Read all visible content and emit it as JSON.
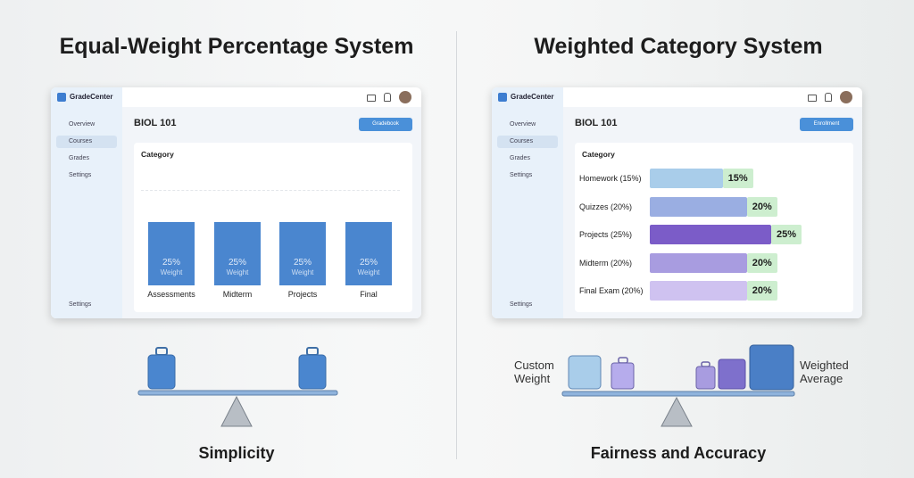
{
  "panels": [
    {
      "title": "Equal-Weight Percentage System",
      "app": {
        "brand": "GradeCenter",
        "nav": [
          "Overview",
          "Courses",
          "Grades",
          "Settings"
        ],
        "nav_bottom": "Settings",
        "course": "BIOL 101",
        "button": "Gradebook"
      },
      "chart": {
        "type": "bar",
        "heading": "Category",
        "categories": [
          "Assessments",
          "Midterm",
          "Projects",
          "Final"
        ],
        "values": [
          25,
          25,
          25,
          25
        ],
        "value_labels": [
          "25%",
          "25%",
          "25%",
          "25%"
        ],
        "value_caption": "Weight",
        "color": "#4a86cf"
      },
      "caption": "Simplicity"
    },
    {
      "title": "Weighted Category System",
      "app": {
        "brand": "GradeCenter",
        "nav": [
          "Overview",
          "Courses",
          "Grades",
          "Settings"
        ],
        "nav_bottom": "Settings",
        "course": "BIOL 101",
        "button": "Enrollment"
      },
      "chart": {
        "type": "hbar",
        "heading": "Category",
        "categories": [
          "Homework (15%)",
          "Quizzes (20%)",
          "Projects (25%)",
          "Midterm (20%)",
          "Final Exam (20%)"
        ],
        "values": [
          15,
          20,
          25,
          20,
          20
        ],
        "value_labels": [
          "15%",
          "20%",
          "25%",
          "20%",
          "20%"
        ],
        "colors": [
          "#a9cdea",
          "#9aaee2",
          "#7b5cc8",
          "#a89ce0",
          "#cfc2f0"
        ]
      },
      "scale_labels": [
        "Custom Weight",
        "Weighted Average"
      ],
      "caption": "Fairness and Accuracy"
    }
  ]
}
